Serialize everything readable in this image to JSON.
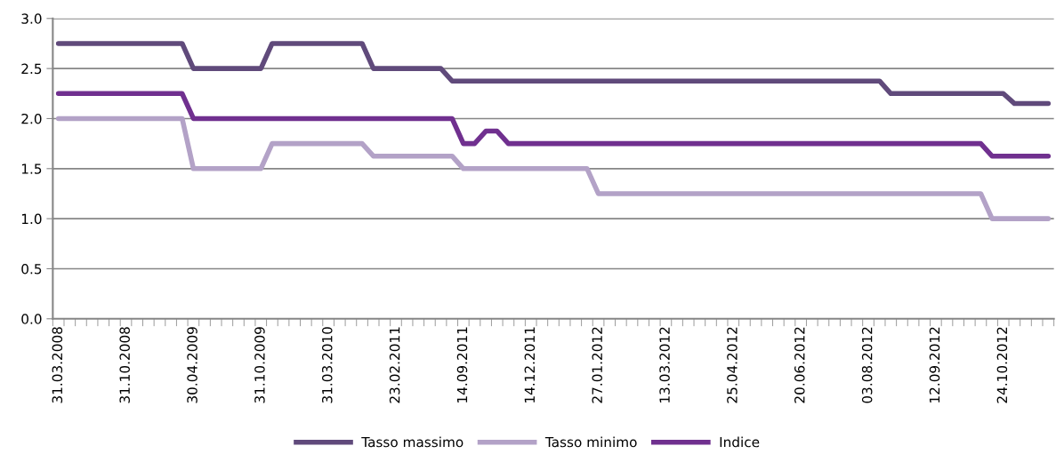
{
  "chart_data": {
    "type": "line",
    "categories": [
      "31.03.2008",
      null,
      null,
      null,
      null,
      null,
      "31.10.2008",
      null,
      null,
      null,
      null,
      null,
      "30.04.2009",
      null,
      null,
      null,
      null,
      null,
      "31.10.2009",
      null,
      null,
      null,
      null,
      null,
      "31.03.2010",
      null,
      null,
      null,
      null,
      null,
      "23.02.2011",
      null,
      null,
      null,
      null,
      null,
      "14.09.2011",
      null,
      null,
      null,
      null,
      null,
      "14.12.2011",
      null,
      null,
      null,
      null,
      null,
      "27.01.2012",
      null,
      null,
      null,
      null,
      null,
      "13.03.2012",
      null,
      null,
      null,
      null,
      null,
      "25.04.2012",
      null,
      null,
      null,
      null,
      null,
      "20.06.2012",
      null,
      null,
      null,
      null,
      null,
      "03.08.2012",
      null,
      null,
      null,
      null,
      null,
      "12.09.2012",
      null,
      null,
      null,
      null,
      null,
      "24.10.2012",
      null,
      null,
      null,
      null
    ],
    "series": [
      {
        "name": "Tasso massimo",
        "color": "#604a7b",
        "values": [
          2.75,
          2.75,
          2.75,
          2.75,
          2.75,
          2.75,
          2.75,
          2.75,
          2.75,
          2.75,
          2.75,
          2.75,
          2.5,
          2.5,
          2.5,
          2.5,
          2.5,
          2.5,
          2.5,
          2.75,
          2.75,
          2.75,
          2.75,
          2.75,
          2.75,
          2.75,
          2.75,
          2.75,
          2.5,
          2.5,
          2.5,
          2.5,
          2.5,
          2.5,
          2.5,
          2.375,
          2.375,
          2.375,
          2.375,
          2.375,
          2.375,
          2.375,
          2.375,
          2.375,
          2.375,
          2.375,
          2.375,
          2.375,
          2.375,
          2.375,
          2.375,
          2.375,
          2.375,
          2.375,
          2.375,
          2.375,
          2.375,
          2.375,
          2.375,
          2.375,
          2.375,
          2.375,
          2.375,
          2.375,
          2.375,
          2.375,
          2.375,
          2.375,
          2.375,
          2.375,
          2.375,
          2.375,
          2.375,
          2.375,
          2.25,
          2.25,
          2.25,
          2.25,
          2.25,
          2.25,
          2.25,
          2.25,
          2.25,
          2.25,
          2.25,
          2.15,
          2.15,
          2.15,
          2.15
        ]
      },
      {
        "name": "Tasso minimo",
        "color": "#b3a2c7",
        "values": [
          2.0,
          2.0,
          2.0,
          2.0,
          2.0,
          2.0,
          2.0,
          2.0,
          2.0,
          2.0,
          2.0,
          2.0,
          1.5,
          1.5,
          1.5,
          1.5,
          1.5,
          1.5,
          1.5,
          1.75,
          1.75,
          1.75,
          1.75,
          1.75,
          1.75,
          1.75,
          1.75,
          1.75,
          1.625,
          1.625,
          1.625,
          1.625,
          1.625,
          1.625,
          1.625,
          1.625,
          1.5,
          1.5,
          1.5,
          1.5,
          1.5,
          1.5,
          1.5,
          1.5,
          1.5,
          1.5,
          1.5,
          1.5,
          1.25,
          1.25,
          1.25,
          1.25,
          1.25,
          1.25,
          1.25,
          1.25,
          1.25,
          1.25,
          1.25,
          1.25,
          1.25,
          1.25,
          1.25,
          1.25,
          1.25,
          1.25,
          1.25,
          1.25,
          1.25,
          1.25,
          1.25,
          1.25,
          1.25,
          1.25,
          1.25,
          1.25,
          1.25,
          1.25,
          1.25,
          1.25,
          1.25,
          1.25,
          1.25,
          1.0,
          1.0,
          1.0,
          1.0,
          1.0,
          1.0
        ]
      },
      {
        "name": "Indice",
        "color": "#70308f",
        "values": [
          2.25,
          2.25,
          2.25,
          2.25,
          2.25,
          2.25,
          2.25,
          2.25,
          2.25,
          2.25,
          2.25,
          2.25,
          2.0,
          2.0,
          2.0,
          2.0,
          2.0,
          2.0,
          2.0,
          2.0,
          2.0,
          2.0,
          2.0,
          2.0,
          2.0,
          2.0,
          2.0,
          2.0,
          2.0,
          2.0,
          2.0,
          2.0,
          2.0,
          2.0,
          2.0,
          2.0,
          1.75,
          1.75,
          1.875,
          1.875,
          1.75,
          1.75,
          1.75,
          1.75,
          1.75,
          1.75,
          1.75,
          1.75,
          1.75,
          1.75,
          1.75,
          1.75,
          1.75,
          1.75,
          1.75,
          1.75,
          1.75,
          1.75,
          1.75,
          1.75,
          1.75,
          1.75,
          1.75,
          1.75,
          1.75,
          1.75,
          1.75,
          1.75,
          1.75,
          1.75,
          1.75,
          1.75,
          1.75,
          1.75,
          1.75,
          1.75,
          1.75,
          1.75,
          1.75,
          1.75,
          1.75,
          1.75,
          1.75,
          1.625,
          1.625,
          1.625,
          1.625,
          1.625,
          1.625
        ]
      }
    ],
    "ylim": [
      0,
      3.0
    ],
    "yticks": [
      {
        "value": 0,
        "label": "0.0"
      },
      {
        "value": 0.5,
        "label": "0.5"
      },
      {
        "value": 1.0,
        "label": "1.0"
      },
      {
        "value": 1.5,
        "label": "1.5"
      },
      {
        "value": 2.0,
        "label": "2.0"
      },
      {
        "value": 2.5,
        "label": "2.5"
      },
      {
        "value": 3.0,
        "label": "3.0"
      }
    ],
    "grid": "y",
    "legend": "bottom",
    "marker": "none",
    "line_style": "solid"
  }
}
